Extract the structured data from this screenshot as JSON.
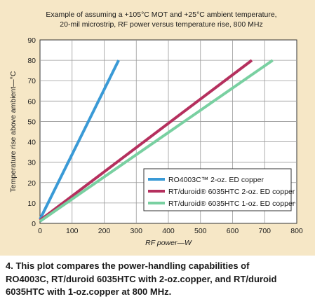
{
  "chart_data": {
    "type": "line",
    "title_lines": [
      "Example of assuming a +105°C MOT and +25°C ambient temperature,",
      "20-mil microstrip, RF power versus temperature rise, 800 MHz"
    ],
    "xlabel": "RF power—W",
    "ylabel": "Temperature rise above ambient—°C",
    "xlim": [
      0,
      800
    ],
    "ylim": [
      0,
      90
    ],
    "xticks": [
      0,
      100,
      200,
      300,
      400,
      500,
      600,
      700,
      800
    ],
    "yticks": [
      0,
      10,
      20,
      30,
      40,
      50,
      60,
      70,
      80,
      90
    ],
    "grid": true,
    "legend_position": "lower-right",
    "series": [
      {
        "name": "RO4003C™ 2-oz. ED copper",
        "color": "#3a9ad6",
        "points": [
          [
            0,
            2
          ],
          [
            245,
            80
          ]
        ]
      },
      {
        "name": "RT/duroid® 6035HTC 2-oz. ED copper",
        "color": "#b5305e",
        "points": [
          [
            0,
            1.5
          ],
          [
            660,
            80
          ]
        ]
      },
      {
        "name": "RT/duroid® 6035HTC 1-oz. ED copper",
        "color": "#79d0a1",
        "points": [
          [
            0,
            1
          ],
          [
            725,
            80
          ]
        ]
      }
    ]
  },
  "caption_lines": [
    "4. This plot compares the power-handling capabilities of",
    "RO4003C, RT/duroid 6035HTC with 2-oz.copper, and RT/duroid",
    "6035HTC with 1-oz.copper at 800 MHz."
  ]
}
